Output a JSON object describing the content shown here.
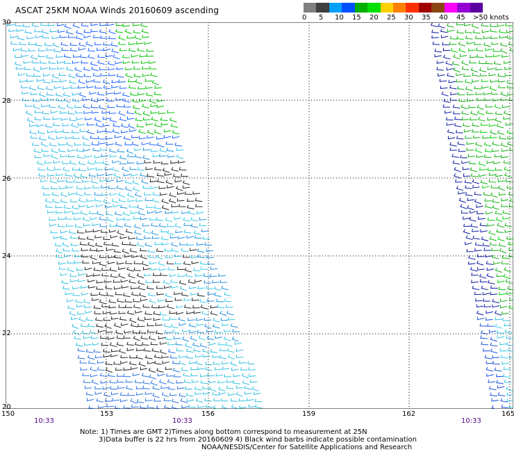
{
  "title": "ASCAT 25KM NOAA Winds 20160609 ascending",
  "legend": {
    "labels": [
      "0",
      "5",
      "10",
      "15",
      "20",
      "25",
      "30",
      "35",
      "40",
      "45",
      ">50 knots"
    ],
    "colors": [
      "#7f7f7f",
      "#3f3f3f",
      "#00a0ff",
      "#0050ff",
      "#00b000",
      "#00e000",
      "#ffd000",
      "#ff8000",
      "#ff3000",
      "#a00000",
      "#8b4513",
      "#ff00ff",
      "#9400d3",
      "#5a00a0"
    ]
  },
  "axes": {
    "lat_ticks": [
      "30",
      "28",
      "26",
      "24",
      "22",
      "20"
    ],
    "lon_ticks": [
      "150",
      "153",
      "156",
      "159",
      "162",
      "165"
    ],
    "time_labels": [
      "10:33",
      "10:33",
      "10:33"
    ]
  },
  "notes": {
    "line1": "Note: 1) Times are GMT 2)Times along bottom correspond to measurement at 25N",
    "line2": "3)Data buffer is 22 hrs from 20160609 4) Black wind barbs indicate possible contamination",
    "line3": "NOAA/NESDIS/Center for Satellite Applications and Research"
  }
}
